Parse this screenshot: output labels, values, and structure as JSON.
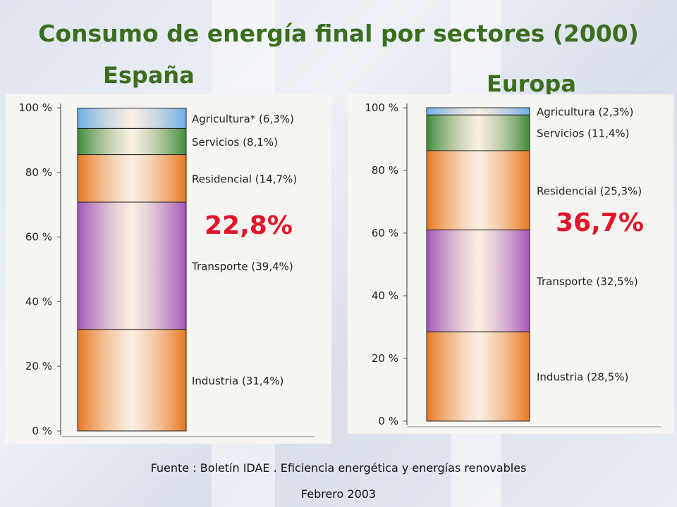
{
  "title": "Consumo de energía final por sectores (2000)",
  "panels": [
    {
      "region": "España",
      "highlight": "22,8%"
    },
    {
      "region": "Europa",
      "highlight": "36,7%"
    }
  ],
  "source": "Fuente : Boletín IDAE . Eficiencia energética y energías renovables",
  "date": "Febrero 2003",
  "colors": {
    "agricultura": "#6aaee8",
    "servicios": "#3f8a3a",
    "residencial": "#e8771f",
    "transporte": "#a155b8",
    "industria": "#e8771f",
    "highlight": "#e3142a",
    "title": "#3c6e1f"
  },
  "chart_data": [
    {
      "type": "bar",
      "stacked": true,
      "title": "España",
      "ylim": [
        0,
        100
      ],
      "yticks": [
        "0 %",
        "20 %",
        "40 %",
        "60 %",
        "80 %",
        "100 %"
      ],
      "series": [
        {
          "key": "industria",
          "label": "Industria (31,4%)",
          "value": 31.4
        },
        {
          "key": "transporte",
          "label": "Transporte (39,4%)",
          "value": 39.4
        },
        {
          "key": "residencial",
          "label": "Residencial (14,7%)",
          "value": 14.7
        },
        {
          "key": "servicios",
          "label": "Servicios (8,1%)",
          "value": 8.1
        },
        {
          "key": "agricultura",
          "label": "Agricultura* (6,3%)",
          "value": 6.3
        }
      ]
    },
    {
      "type": "bar",
      "stacked": true,
      "title": "Europa",
      "ylim": [
        0,
        100
      ],
      "yticks": [
        "0 %",
        "20 %",
        "40 %",
        "60 %",
        "80 %",
        "100 %"
      ],
      "series": [
        {
          "key": "industria",
          "label": "Industria (28,5%)",
          "value": 28.5
        },
        {
          "key": "transporte",
          "label": "Transporte (32,5%)",
          "value": 32.5
        },
        {
          "key": "residencial",
          "label": "Residencial (25,3%)",
          "value": 25.3
        },
        {
          "key": "servicios",
          "label": "Servicios (11,4%)",
          "value": 11.4
        },
        {
          "key": "agricultura",
          "label": "Agricultura (2,3%)",
          "value": 2.3
        }
      ]
    }
  ]
}
